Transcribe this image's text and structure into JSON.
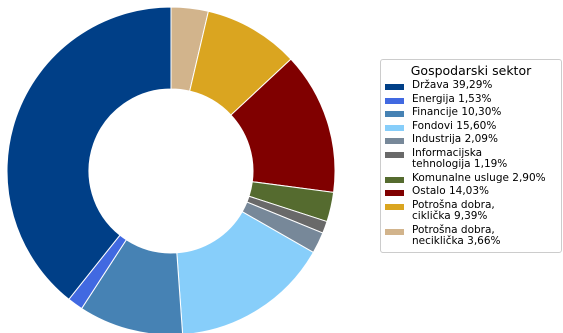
{
  "chart_data": {
    "type": "pie",
    "legend_title": "Gospodarski sektor",
    "legend_position": "right",
    "slices": [
      {
        "label": "Potrošna dobra,\nnециклička 3,66%",
        "value": 3.66,
        "color": "#d2b48c"
      },
      {
        "label": "Potrošna dobra,\nciklička 9,39%",
        "value": 9.39,
        "color": "#daa520"
      },
      {
        "label": "Ostalo 14,03%",
        "value": 14.03,
        "color": "#800000"
      },
      {
        "label": "Komunalne usluge 2,90%",
        "value": 2.9,
        "color": "#556b2f"
      },
      {
        "label": "Informacijska\ntehnologija 1,19%",
        "value": 1.19,
        "color": "#696969"
      },
      {
        "label": "Industrija 2,09%",
        "value": 2.09,
        "color": "#778899"
      },
      {
        "label": "Fondovi 15,60%",
        "value": 15.6,
        "color": "#87cefa"
      },
      {
        "label": "Financije 10,30%",
        "value": 10.3,
        "color": "#4682b4"
      },
      {
        "label": "Energija 1,53%",
        "value": 1.53,
        "color": "#4169e1"
      },
      {
        "label": "Država 39,29%",
        "value": 39.29,
        "color": "#003f87"
      }
    ],
    "legend_order": [
      {
        "label": "Država 39,29%",
        "color": "#003f87"
      },
      {
        "label": "Energija 1,53%",
        "color": "#4169e1"
      },
      {
        "label": "Financije 10,30%",
        "color": "#4682b4"
      },
      {
        "label": "Fondovi 15,60%",
        "color": "#87cefa"
      },
      {
        "label": "Industrija 2,09%",
        "color": "#778899"
      },
      {
        "label": "Informacijska\ntehnologija 1,19%",
        "color": "#696969"
      },
      {
        "label": "Komunalne usluge 2,90%",
        "color": "#556b2f"
      },
      {
        "label": "Ostalo 14,03%",
        "color": "#800000"
      },
      {
        "label": "Potrošna dobra,\nciklička 9,39%",
        "color": "#daa520"
      },
      {
        "label": "Potrošna dobra,\nneciklička 3,66%",
        "color": "#d2b48c"
      }
    ]
  }
}
